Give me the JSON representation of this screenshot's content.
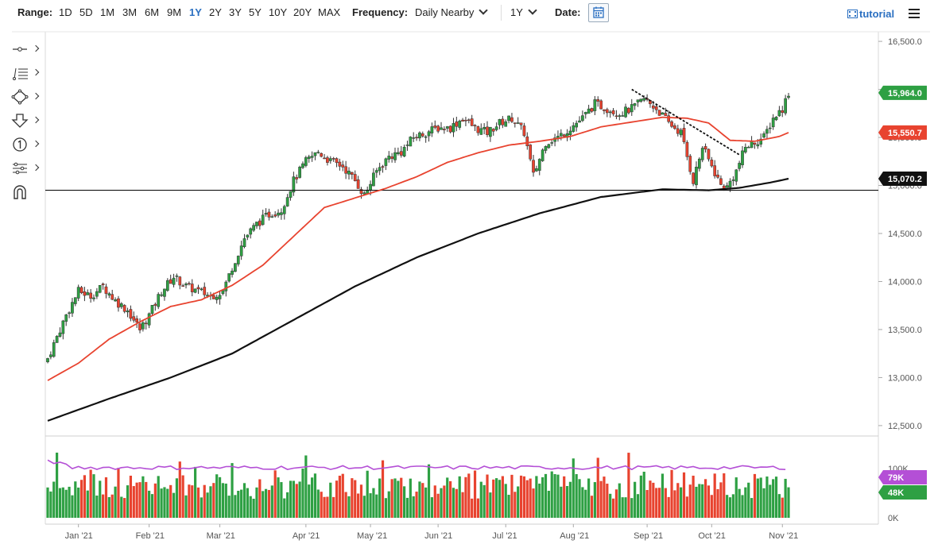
{
  "toolbar": {
    "range_label": "Range:",
    "ranges": [
      "1D",
      "5D",
      "1M",
      "3M",
      "6M",
      "9M",
      "1Y",
      "2Y",
      "3Y",
      "5Y",
      "10Y",
      "20Y",
      "MAX"
    ],
    "active_range": "1Y",
    "frequency_label": "Frequency:",
    "frequency_value": "Daily Nearby",
    "period_value": "1Y",
    "date_label": "Date:",
    "tutorial_label": "tutorial"
  },
  "colors": {
    "up": "#2ea043",
    "down": "#e8432f",
    "ma50": "#e8432f",
    "ma200": "#111111",
    "volume_avg": "#b44fd6",
    "axis_text": "#555555"
  },
  "chart_data": {
    "type": "candlestick",
    "price_axis": {
      "ticks": [
        "16,500.0",
        "16,000.0",
        "15,500.0",
        "15,000.0",
        "14,500.0",
        "14,000.0",
        "13,500.0",
        "13,000.0",
        "12,500.0"
      ],
      "tick_values": [
        16500,
        16000,
        15500,
        15000,
        14500,
        14000,
        13500,
        13000,
        12500
      ],
      "range": [
        12400,
        16600
      ]
    },
    "volume_axis": {
      "ticks": [
        "100K",
        "0K"
      ],
      "tick_values": [
        100000,
        0
      ],
      "range": [
        0,
        110000
      ]
    },
    "x_axis": {
      "labels": [
        "Jan '21",
        "Feb '21",
        "Mar '21",
        "Apr '21",
        "May '21",
        "Jun '21",
        "Jul '21",
        "Aug '21",
        "Sep '21",
        "Oct '21",
        "Nov '21"
      ],
      "label_days": [
        10,
        33,
        56,
        84,
        105,
        127,
        149,
        171,
        195,
        216,
        239
      ]
    },
    "badges": [
      {
        "label": "15,964.0",
        "value": 15964,
        "color": "#2ea043"
      },
      {
        "label": "15,550.7",
        "value": 15550.7,
        "color": "#e8432f"
      },
      {
        "label": "15,070.2",
        "value": 15070.2,
        "color": "#111111"
      }
    ],
    "volume_badges": [
      {
        "label": "79K",
        "value": 79000,
        "color": "#b44fd6"
      },
      {
        "label": "48K",
        "value": 48000,
        "color": "#2ea043"
      }
    ],
    "horizontal_line": 14950,
    "trendline": {
      "from": [
        190,
        16000
      ],
      "to": [
        225,
        15320
      ]
    },
    "price_keypoints": [
      [
        0,
        13200
      ],
      [
        6,
        13650
      ],
      [
        10,
        13900
      ],
      [
        14,
        13850
      ],
      [
        18,
        13950
      ],
      [
        22,
        13800
      ],
      [
        26,
        13700
      ],
      [
        30,
        13500
      ],
      [
        33,
        13650
      ],
      [
        37,
        13900
      ],
      [
        41,
        14050
      ],
      [
        45,
        13950
      ],
      [
        49,
        13900
      ],
      [
        53,
        13850
      ],
      [
        57,
        13900
      ],
      [
        60,
        14150
      ],
      [
        64,
        14450
      ],
      [
        68,
        14600
      ],
      [
        72,
        14700
      ],
      [
        76,
        14750
      ],
      [
        80,
        15050
      ],
      [
        84,
        15250
      ],
      [
        88,
        15350
      ],
      [
        92,
        15250
      ],
      [
        96,
        15200
      ],
      [
        100,
        15050
      ],
      [
        103,
        14900
      ],
      [
        107,
        15150
      ],
      [
        111,
        15300
      ],
      [
        115,
        15350
      ],
      [
        119,
        15500
      ],
      [
        123,
        15550
      ],
      [
        127,
        15600
      ],
      [
        131,
        15600
      ],
      [
        135,
        15700
      ],
      [
        139,
        15600
      ],
      [
        143,
        15550
      ],
      [
        147,
        15650
      ],
      [
        151,
        15700
      ],
      [
        155,
        15550
      ],
      [
        158,
        15100
      ],
      [
        162,
        15450
      ],
      [
        166,
        15500
      ],
      [
        170,
        15600
      ],
      [
        174,
        15700
      ],
      [
        178,
        15850
      ],
      [
        182,
        15800
      ],
      [
        186,
        15750
      ],
      [
        190,
        15800
      ],
      [
        194,
        15900
      ],
      [
        198,
        15800
      ],
      [
        202,
        15650
      ],
      [
        206,
        15550
      ],
      [
        208,
        15300
      ],
      [
        210,
        15050
      ],
      [
        213,
        15400
      ],
      [
        216,
        15200
      ],
      [
        219,
        15000
      ],
      [
        221,
        14980
      ],
      [
        224,
        15150
      ],
      [
        227,
        15400
      ],
      [
        230,
        15450
      ],
      [
        233,
        15500
      ],
      [
        236,
        15700
      ],
      [
        239,
        15800
      ],
      [
        241,
        15964
      ]
    ],
    "ma50_keypoints": [
      [
        0,
        12970
      ],
      [
        10,
        13150
      ],
      [
        20,
        13400
      ],
      [
        30,
        13580
      ],
      [
        40,
        13740
      ],
      [
        50,
        13810
      ],
      [
        60,
        13960
      ],
      [
        70,
        14170
      ],
      [
        80,
        14470
      ],
      [
        90,
        14770
      ],
      [
        100,
        14870
      ],
      [
        110,
        14970
      ],
      [
        120,
        15090
      ],
      [
        130,
        15240
      ],
      [
        140,
        15340
      ],
      [
        150,
        15420
      ],
      [
        160,
        15460
      ],
      [
        170,
        15510
      ],
      [
        180,
        15610
      ],
      [
        190,
        15660
      ],
      [
        200,
        15710
      ],
      [
        208,
        15700
      ],
      [
        215,
        15650
      ],
      [
        222,
        15470
      ],
      [
        230,
        15460
      ],
      [
        238,
        15510
      ],
      [
        241,
        15550.7
      ]
    ],
    "ma200_keypoints": [
      [
        0,
        12550
      ],
      [
        20,
        12780
      ],
      [
        40,
        13000
      ],
      [
        60,
        13250
      ],
      [
        80,
        13600
      ],
      [
        100,
        13950
      ],
      [
        120,
        14250
      ],
      [
        140,
        14500
      ],
      [
        160,
        14710
      ],
      [
        180,
        14880
      ],
      [
        200,
        14960
      ],
      [
        215,
        14950
      ],
      [
        225,
        14975
      ],
      [
        235,
        15030
      ],
      [
        241,
        15070.2
      ]
    ],
    "volume_avg_level": 79000
  }
}
